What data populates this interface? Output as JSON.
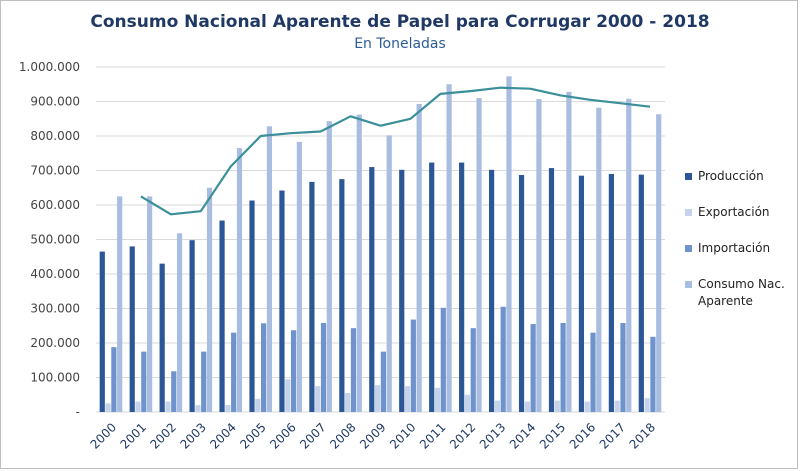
{
  "chart_data": {
    "type": "bar",
    "title": "Consumo Nacional Aparente de Papel para Corrugar 2000 - 2018",
    "subtitle": "En Toneladas",
    "categories": [
      "2000",
      "2001",
      "2002",
      "2003",
      "2004",
      "2005",
      "2006",
      "2007",
      "2008",
      "2009",
      "2010",
      "2011",
      "2012",
      "2013",
      "2014",
      "2015",
      "2016",
      "2017",
      "2018"
    ],
    "ylim": [
      0,
      1000000
    ],
    "yticks": [
      {
        "value": 0,
        "label": "-"
      },
      {
        "value": 100000,
        "label": "100.000"
      },
      {
        "value": 200000,
        "label": "200.000"
      },
      {
        "value": 300000,
        "label": "300.000"
      },
      {
        "value": 400000,
        "label": "400.000"
      },
      {
        "value": 500000,
        "label": "500.000"
      },
      {
        "value": 600000,
        "label": "600.000"
      },
      {
        "value": 700000,
        "label": "700.000"
      },
      {
        "value": 800000,
        "label": "800.000"
      },
      {
        "value": 900000,
        "label": "900.000"
      },
      {
        "value": 1000000,
        "label": "1.000.000"
      }
    ],
    "grid": true,
    "legend_position": "right",
    "series": [
      {
        "name": "Producción",
        "kind": "bar",
        "color": "#2b5797",
        "values": [
          465000,
          480000,
          430000,
          498000,
          555000,
          613000,
          642000,
          667000,
          675000,
          710000,
          702000,
          723000,
          723000,
          702000,
          687000,
          707000,
          685000,
          690000,
          688000
        ]
      },
      {
        "name": "Exportación",
        "kind": "bar",
        "color": "#c5d3ea",
        "values": [
          25000,
          30000,
          30000,
          20000,
          20000,
          38000,
          95000,
          75000,
          55000,
          78000,
          75000,
          70000,
          50000,
          33000,
          30000,
          33000,
          30000,
          33000,
          40000
        ]
      },
      {
        "name": "Importación",
        "kind": "bar",
        "color": "#6f93cc",
        "values": [
          188000,
          175000,
          118000,
          175000,
          230000,
          257000,
          237000,
          258000,
          243000,
          175000,
          268000,
          302000,
          243000,
          305000,
          255000,
          258000,
          230000,
          258000,
          218000
        ]
      },
      {
        "name": "Consumo Nac. Aparente",
        "kind": "bar",
        "color": "#a9bde0",
        "values": [
          625000,
          625000,
          518000,
          650000,
          765000,
          828000,
          783000,
          843000,
          862000,
          802000,
          893000,
          950000,
          910000,
          973000,
          907000,
          928000,
          882000,
          908000,
          863000
        ]
      }
    ],
    "trend_line": {
      "color": "#3a8f9a",
      "values": [
        null,
        625000,
        573000,
        582000,
        712000,
        800000,
        808000,
        813000,
        857000,
        830000,
        850000,
        922000,
        930000,
        940000,
        937000,
        918000,
        905000,
        895000,
        885000
      ]
    }
  }
}
